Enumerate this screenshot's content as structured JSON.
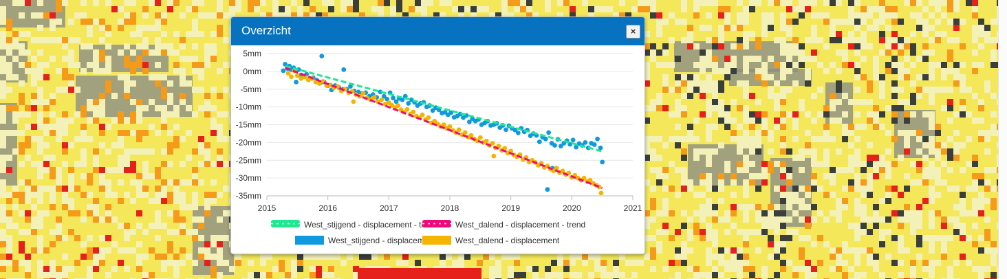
{
  "dialog": {
    "title": "Overzicht",
    "close_icon": "×"
  },
  "colors": {
    "map_yellow": "#f4e85a",
    "map_pale": "#f3f1b8",
    "map_orange": "#f59a19",
    "map_red": "#e6201b",
    "map_dark": "#3a3f3c",
    "map_gray": "#8d8f86",
    "header": "#0772c0",
    "grid": "#e6e6e6",
    "axis": "#bbbbbb"
  },
  "chart_data": {
    "type": "scatter",
    "title": "",
    "xlabel": "",
    "ylabel": "",
    "xlim": [
      2015,
      2021
    ],
    "ylim": [
      -35,
      5
    ],
    "x_ticks": [
      "2015",
      "2016",
      "2017",
      "2018",
      "2019",
      "2020",
      "2021"
    ],
    "y_ticks": [
      "5mm",
      "0mm",
      "-5mm",
      "-10mm",
      "-15mm",
      "-20mm",
      "-25mm",
      "-30mm",
      "-35mm"
    ],
    "grid": true,
    "legend_position": "bottom",
    "series": [
      {
        "name": "West_stijgend - displacement - trend",
        "type": "line",
        "style": "dashed",
        "color": "#20e890",
        "x": [
          2015.3,
          2020.5
        ],
        "y": [
          1.5,
          -22.5
        ]
      },
      {
        "name": "West_dalend - displacement - trend",
        "type": "line",
        "style": "dashed",
        "color": "#ef0a7a",
        "x": [
          2015.3,
          2020.5
        ],
        "y": [
          1.0,
          -32.8
        ]
      },
      {
        "name": "West_stijgend - displacement",
        "type": "scatter",
        "color": "#0f9ae0",
        "x": [
          2015.27,
          2015.3,
          2015.34,
          2015.37,
          2015.4,
          2015.44,
          2015.48,
          2015.52,
          2015.56,
          2015.6,
          2015.65,
          2015.7,
          2015.76,
          2015.82,
          2015.88,
          2015.94,
          2016.0,
          2016.06,
          2016.12,
          2016.18,
          2016.25,
          2016.31,
          2016.37,
          2016.43,
          2016.5,
          2016.56,
          2016.62,
          2016.68,
          2016.74,
          2016.8,
          2016.86,
          2016.92,
          2016.97,
          2017.02,
          2017.07,
          2017.12,
          2017.17,
          2017.22,
          2017.27,
          2017.32,
          2017.37,
          2017.42,
          2017.47,
          2017.52,
          2017.57,
          2017.62,
          2017.67,
          2017.72,
          2017.77,
          2017.82,
          2017.87,
          2017.92,
          2017.97,
          2018.02,
          2018.07,
          2018.12,
          2018.17,
          2018.22,
          2018.27,
          2018.32,
          2018.37,
          2018.42,
          2018.47,
          2018.52,
          2018.57,
          2018.62,
          2018.67,
          2018.72,
          2018.77,
          2018.82,
          2018.87,
          2018.92,
          2018.97,
          2019.02,
          2019.07,
          2019.12,
          2019.17,
          2019.22,
          2019.27,
          2019.32,
          2019.37,
          2019.42,
          2019.47,
          2019.52,
          2019.57,
          2019.62,
          2019.67,
          2019.72,
          2019.77,
          2019.82,
          2019.87,
          2019.92,
          2019.97,
          2020.02,
          2020.07,
          2020.12,
          2020.17,
          2020.22,
          2020.27,
          2020.32,
          2020.37,
          2020.42,
          2020.47,
          2020.5,
          2015.9,
          2016.26,
          2019.6,
          2019.68
        ],
        "y": [
          0.2,
          2.0,
          0.8,
          1.5,
          0.5,
          1.0,
          -3.0,
          0.5,
          -1.0,
          -1.5,
          -0.8,
          -2.0,
          -1.8,
          -2.5,
          -3.2,
          -3.0,
          -4.0,
          -5.2,
          -4.0,
          -4.5,
          -5.0,
          -5.0,
          -4.2,
          -5.5,
          -5.8,
          -6.2,
          -6.0,
          -7.0,
          -6.5,
          -7.3,
          -5.8,
          -7.0,
          -7.8,
          -6.0,
          -7.5,
          -8.5,
          -7.6,
          -8.0,
          -7.0,
          -9.0,
          -8.0,
          -8.7,
          -9.6,
          -9.0,
          -8.7,
          -10.0,
          -9.6,
          -11.0,
          -10.2,
          -10.8,
          -11.7,
          -11.5,
          -12.2,
          -11.6,
          -12.9,
          -12.6,
          -12.0,
          -13.0,
          -12.4,
          -14.2,
          -13.3,
          -14.0,
          -13.5,
          -15.0,
          -14.5,
          -14.0,
          -15.2,
          -15.0,
          -14.6,
          -15.8,
          -15.2,
          -16.4,
          -15.3,
          -16.0,
          -16.5,
          -17.3,
          -16.0,
          -17.0,
          -16.5,
          -18.1,
          -17.5,
          -18.0,
          -19.8,
          -18.5,
          -19.0,
          -17.2,
          -20.2,
          -20.8,
          -19.1,
          -21.0,
          -20.2,
          -19.5,
          -20.5,
          -19.3,
          -21.3,
          -20.3,
          -20.8,
          -20.0,
          -21.5,
          -20.2,
          -20.6,
          -19.0,
          -21.5,
          -25.5,
          4.3,
          0.5,
          -33.2,
          -27.2
        ]
      },
      {
        "name": "West_dalend - displacement",
        "type": "scatter",
        "color": "#f5b400",
        "x": [
          2015.35,
          2015.4,
          2015.45,
          2015.5,
          2015.56,
          2015.62,
          2015.68,
          2015.74,
          2015.8,
          2015.86,
          2015.92,
          2015.98,
          2016.04,
          2016.1,
          2016.16,
          2016.22,
          2016.28,
          2016.34,
          2016.4,
          2016.46,
          2016.52,
          2016.58,
          2016.64,
          2016.7,
          2016.76,
          2016.82,
          2016.88,
          2016.94,
          2017.0,
          2017.05,
          2017.1,
          2017.15,
          2017.2,
          2017.25,
          2017.3,
          2017.35,
          2017.4,
          2017.45,
          2017.5,
          2017.55,
          2017.6,
          2017.65,
          2017.7,
          2017.75,
          2017.8,
          2017.85,
          2017.9,
          2017.95,
          2018.0,
          2018.05,
          2018.1,
          2018.15,
          2018.2,
          2018.25,
          2018.3,
          2018.35,
          2018.4,
          2018.45,
          2018.5,
          2018.55,
          2018.6,
          2018.65,
          2018.7,
          2018.75,
          2018.8,
          2018.85,
          2018.9,
          2018.95,
          2019.0,
          2019.05,
          2019.1,
          2019.15,
          2019.2,
          2019.25,
          2019.3,
          2019.35,
          2019.4,
          2019.45,
          2019.5,
          2019.55,
          2019.6,
          2019.65,
          2019.7,
          2019.75,
          2019.8,
          2019.85,
          2019.9,
          2019.95,
          2020.0,
          2020.05,
          2020.1,
          2020.15,
          2020.2,
          2020.25,
          2020.3,
          2020.35,
          2020.4,
          2020.45,
          2020.48,
          2016.42,
          2018.72
        ],
        "y": [
          -0.5,
          -1.5,
          0.2,
          -1.2,
          -2.0,
          -1.6,
          -2.4,
          -2.0,
          -3.0,
          -3.4,
          -2.8,
          -4.0,
          -3.8,
          -4.6,
          -4.2,
          -5.5,
          -5.0,
          -6.0,
          -5.6,
          -6.5,
          -7.0,
          -6.2,
          -7.5,
          -8.0,
          -7.3,
          -8.5,
          -8.0,
          -9.2,
          -8.8,
          -9.5,
          -10.2,
          -9.6,
          -10.8,
          -11.5,
          -10.7,
          -12.0,
          -11.4,
          -12.6,
          -13.0,
          -12.2,
          -13.6,
          -13.0,
          -14.5,
          -14.0,
          -14.8,
          -15.5,
          -15.0,
          -16.0,
          -15.5,
          -16.6,
          -17.2,
          -16.4,
          -17.8,
          -17.2,
          -18.5,
          -18.0,
          -19.0,
          -19.5,
          -18.6,
          -20.0,
          -19.6,
          -20.8,
          -20.2,
          -21.5,
          -21.0,
          -22.2,
          -21.6,
          -23.0,
          -22.4,
          -23.5,
          -24.0,
          -23.4,
          -24.8,
          -24.2,
          -25.5,
          -25.0,
          -25.6,
          -26.4,
          -25.8,
          -27.0,
          -26.6,
          -27.5,
          -28.0,
          -27.2,
          -28.5,
          -28.0,
          -29.0,
          -28.6,
          -29.8,
          -29.2,
          -30.0,
          -30.6,
          -30.0,
          -31.0,
          -30.6,
          -31.5,
          -32.0,
          -32.5,
          -34.2,
          -8.5,
          -23.8
        ]
      }
    ]
  }
}
